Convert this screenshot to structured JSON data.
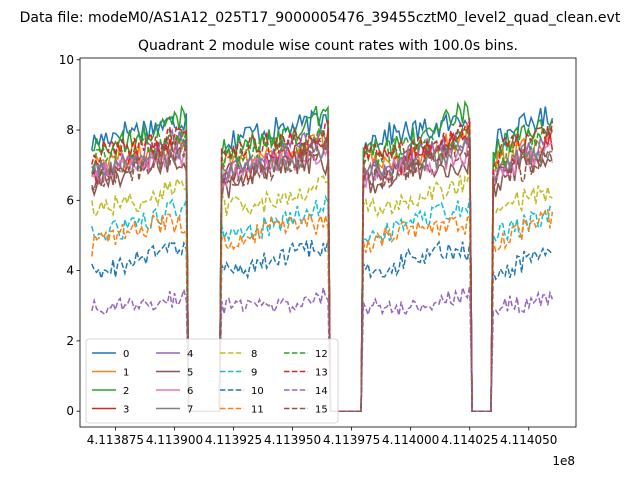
{
  "figure": {
    "suptitle": "Data file: modeM0/AS1A12_025T17_9000005476_39455cztM0_level2_quad_clean.evt",
    "title": "Quadrant 2 module wise count rates with 100.0s bins."
  },
  "chart_data": {
    "type": "line",
    "title": "Quadrant 2 module wise count rates with 100.0s bins.",
    "xlabel": "",
    "ylabel": "",
    "x_offset_text": "1e8",
    "xlim": [
      411386000.0,
      411407000.0
    ],
    "ylim": [
      -0.45,
      10.05
    ],
    "x_ticks": [
      411387500.0,
      411390000.0,
      411392500.0,
      411395000.0,
      411397500.0,
      411400000.0,
      411402500.0,
      411405000.0
    ],
    "x_tick_labels": [
      "4.113875",
      "4.113900",
      "4.113925",
      "4.113950",
      "4.113975",
      "4.114000",
      "4.114025",
      "4.114050"
    ],
    "y_ticks": [
      0,
      2,
      4,
      6,
      8,
      10
    ],
    "y_tick_labels": [
      "0",
      "2",
      "4",
      "6",
      "8",
      "10"
    ],
    "grid": false,
    "legend": {
      "placement": "lower-left",
      "columns": 4
    },
    "segments": [
      {
        "start": 411386500.0,
        "end": 411390500.0
      },
      {
        "start": 411392000.0,
        "end": 411396500.0
      },
      {
        "start": 411398000.0,
        "end": 411402500.0
      },
      {
        "start": 411403500.0,
        "end": 411406000.0
      }
    ],
    "gap_value": 0,
    "series": [
      {
        "name": "0",
        "color": "#1f77b4",
        "dash": "solid",
        "mean": 8.0,
        "amp": 0.35
      },
      {
        "name": "1",
        "color": "#ff7f0e",
        "dash": "solid",
        "mean": 7.4,
        "amp": 0.35
      },
      {
        "name": "2",
        "color": "#2ca02c",
        "dash": "solid",
        "mean": 7.9,
        "amp": 0.35
      },
      {
        "name": "3",
        "color": "#d62728",
        "dash": "solid",
        "mean": 7.2,
        "amp": 0.3
      },
      {
        "name": "4",
        "color": "#9467bd",
        "dash": "solid",
        "mean": 7.3,
        "amp": 0.3
      },
      {
        "name": "5",
        "color": "#8c564b",
        "dash": "solid",
        "mean": 6.8,
        "amp": 0.35
      },
      {
        "name": "6",
        "color": "#e377c2",
        "dash": "solid",
        "mean": 7.0,
        "amp": 0.3
      },
      {
        "name": "7",
        "color": "#7f7f7f",
        "dash": "solid",
        "mean": 7.1,
        "amp": 0.3
      },
      {
        "name": "8",
        "color": "#bcbd22",
        "dash": "dashed",
        "mean": 6.1,
        "amp": 0.3
      },
      {
        "name": "9",
        "color": "#17becf",
        "dash": "dashed",
        "mean": 5.4,
        "amp": 0.3
      },
      {
        "name": "10",
        "color": "#1f77b4",
        "dash": "dashed",
        "mean": 4.3,
        "amp": 0.3
      },
      {
        "name": "11",
        "color": "#ff7f0e",
        "dash": "dashed",
        "mean": 5.1,
        "amp": 0.3
      },
      {
        "name": "12",
        "color": "#2ca02c",
        "dash": "dashed",
        "mean": 7.5,
        "amp": 0.35
      },
      {
        "name": "13",
        "color": "#d62728",
        "dash": "dashed",
        "mean": 7.6,
        "amp": 0.35
      },
      {
        "name": "14",
        "color": "#9467bd",
        "dash": "dashed",
        "mean": 3.1,
        "amp": 0.25
      },
      {
        "name": "15",
        "color": "#8c564b",
        "dash": "dashed",
        "mean": 7.0,
        "amp": 0.35
      }
    ]
  }
}
